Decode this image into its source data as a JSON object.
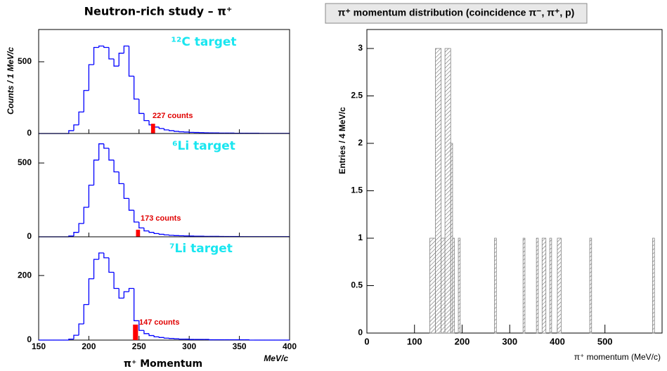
{
  "chart_data": [
    {
      "type": "panels",
      "title": "Neutron-rich study – π⁺",
      "ylabel": "Counts / 1 MeV/c",
      "xlabel": "π⁺ Momentum",
      "xunit": "MeV/c",
      "xlim": [
        150,
        400
      ],
      "xticks": [
        150,
        200,
        250,
        300,
        350,
        400
      ],
      "bins": [
        150,
        155,
        160,
        165,
        170,
        175,
        180,
        185,
        190,
        195,
        200,
        205,
        210,
        215,
        220,
        225,
        230,
        235,
        240,
        245,
        250,
        255,
        260,
        265,
        270,
        275,
        280,
        285,
        290,
        295,
        300,
        305,
        310,
        315,
        320,
        325,
        330,
        335,
        340,
        345,
        350,
        355,
        360,
        365,
        370,
        375,
        380,
        385,
        390,
        395,
        400
      ],
      "panels": [
        {
          "label": "¹²C target",
          "annotation": "227 counts",
          "ylim": [
            0,
            725
          ],
          "yticks": [
            0,
            500
          ],
          "color": "#0000ff",
          "counts": [
            0,
            0,
            0,
            0,
            0,
            0,
            20,
            60,
            150,
            300,
            480,
            600,
            610,
            600,
            520,
            470,
            560,
            610,
            400,
            240,
            140,
            90,
            60,
            45,
            35,
            25,
            20,
            15,
            12,
            10,
            8,
            7,
            6,
            5,
            4,
            4,
            3,
            3,
            3,
            2,
            2,
            2,
            2,
            2,
            1,
            1,
            1,
            1,
            1,
            1
          ],
          "highlight": {
            "bins": [
              262,
              266
            ],
            "counts": [
              68
            ],
            "color": "#ff0000"
          }
        },
        {
          "label": "⁶Li target",
          "annotation": "173 counts",
          "ylim": [
            0,
            700
          ],
          "yticks": [
            0,
            500
          ],
          "color": "#0000ff",
          "counts": [
            0,
            0,
            0,
            0,
            0,
            0,
            5,
            30,
            90,
            200,
            350,
            520,
            630,
            600,
            520,
            440,
            360,
            260,
            180,
            100,
            60,
            40,
            30,
            22,
            17,
            13,
            10,
            8,
            7,
            6,
            5,
            4,
            4,
            3,
            3,
            3,
            2,
            2,
            2,
            2,
            1,
            1,
            1,
            1,
            1,
            1,
            1,
            1,
            1,
            1
          ],
          "highlight": {
            "bins": [
              247,
              251
            ],
            "counts": [
              48
            ],
            "color": "#ff0000"
          }
        },
        {
          "label": "⁷Li target",
          "annotation": "147 counts",
          "ylim": [
            0,
            320
          ],
          "yticks": [
            0,
            200
          ],
          "color": "#0000ff",
          "counts": [
            0,
            0,
            0,
            0,
            0,
            0,
            3,
            15,
            50,
            110,
            190,
            250,
            270,
            255,
            210,
            160,
            130,
            150,
            160,
            60,
            30,
            20,
            14,
            10,
            8,
            6,
            5,
            4,
            3,
            3,
            2,
            2,
            2,
            2,
            1,
            1,
            1,
            1,
            1,
            1,
            1,
            1,
            0,
            0,
            0,
            0,
            0,
            0,
            0,
            0
          ],
          "highlight": {
            "bins": [
              244,
              249
            ],
            "counts": [
              48
            ],
            "color": "#ff0000"
          }
        }
      ]
    },
    {
      "type": "histogram",
      "title": "π⁺ momentum distribution (coincidence π⁻, π⁺, p)",
      "ylabel": "Entries / 4 MeV/c",
      "xlabel": "π⁺ momentum (MeV/c)",
      "xlim": [
        0,
        620
      ],
      "ylim": [
        0,
        3.2
      ],
      "xticks": [
        0,
        100,
        200,
        300,
        400,
        500
      ],
      "yticks": [
        0,
        0.5,
        1,
        1.5,
        2,
        2.5,
        3
      ],
      "color": "#808080",
      "bins": [
        0,
        132,
        144,
        156,
        164,
        176,
        180,
        184,
        192,
        196,
        268,
        272,
        328,
        332,
        356,
        360,
        368,
        376,
        384,
        388,
        400,
        408,
        468,
        472,
        600,
        604,
        620
      ],
      "counts": [
        0,
        1,
        3,
        1,
        3,
        2,
        1,
        0,
        1,
        0,
        1,
        0,
        1,
        0,
        1,
        0,
        1,
        0,
        1,
        0,
        1,
        0,
        1,
        0,
        1,
        0
      ]
    }
  ]
}
